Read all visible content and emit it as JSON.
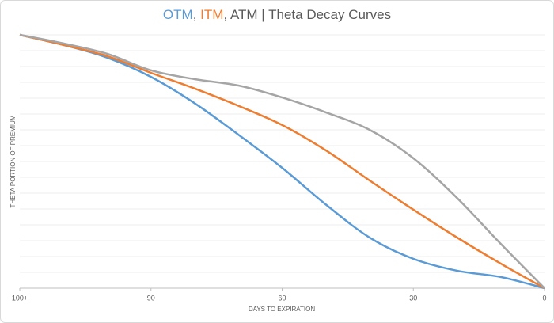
{
  "chart_data": {
    "type": "line",
    "title_parts": [
      {
        "text": "OTM",
        "color": "#5b9bd5"
      },
      {
        "text": ", ",
        "color": "#595959"
      },
      {
        "text": "ITM",
        "color": "#ed7d31"
      },
      {
        "text": ", ATM | Theta Decay Curves",
        "color": "#595959"
      }
    ],
    "xlabel": "DAYS TO EXPIRATION",
    "ylabel": "THETA PORTION OF PREMIUM",
    "x": [
      120,
      110,
      100,
      90,
      80,
      70,
      60,
      50,
      40,
      30,
      20,
      10,
      0
    ],
    "series": [
      {
        "name": "OTM",
        "color": "#5b9bd5",
        "values": [
          100,
          96,
          91,
          83.4,
          73,
          60.6,
          47.5,
          33,
          20,
          11.6,
          6.9,
          4.4,
          0
        ]
      },
      {
        "name": "ITM",
        "color": "#ed7d31",
        "values": [
          100,
          96,
          91.6,
          85,
          78.8,
          72,
          64.4,
          54.4,
          42.5,
          31,
          20,
          9.7,
          0
        ]
      },
      {
        "name": "ATM",
        "color": "#a5a5a5",
        "values": [
          100,
          96.6,
          92.5,
          86,
          82.5,
          80,
          75.3,
          69.4,
          62.5,
          51.3,
          35.6,
          17.5,
          0
        ]
      }
    ],
    "xlim": [
      120,
      0
    ],
    "xticks": [
      {
        "value": 120,
        "label": "100+"
      },
      90,
      60,
      30,
      0
    ],
    "ylim": [
      0,
      100
    ],
    "yticks": [
      0,
      6.25,
      12.5,
      18.75,
      25,
      31.25,
      37.5,
      43.75,
      50,
      56.25,
      62.5,
      68.75,
      75,
      81.25,
      87.5,
      93.75,
      100
    ],
    "grid": true
  }
}
